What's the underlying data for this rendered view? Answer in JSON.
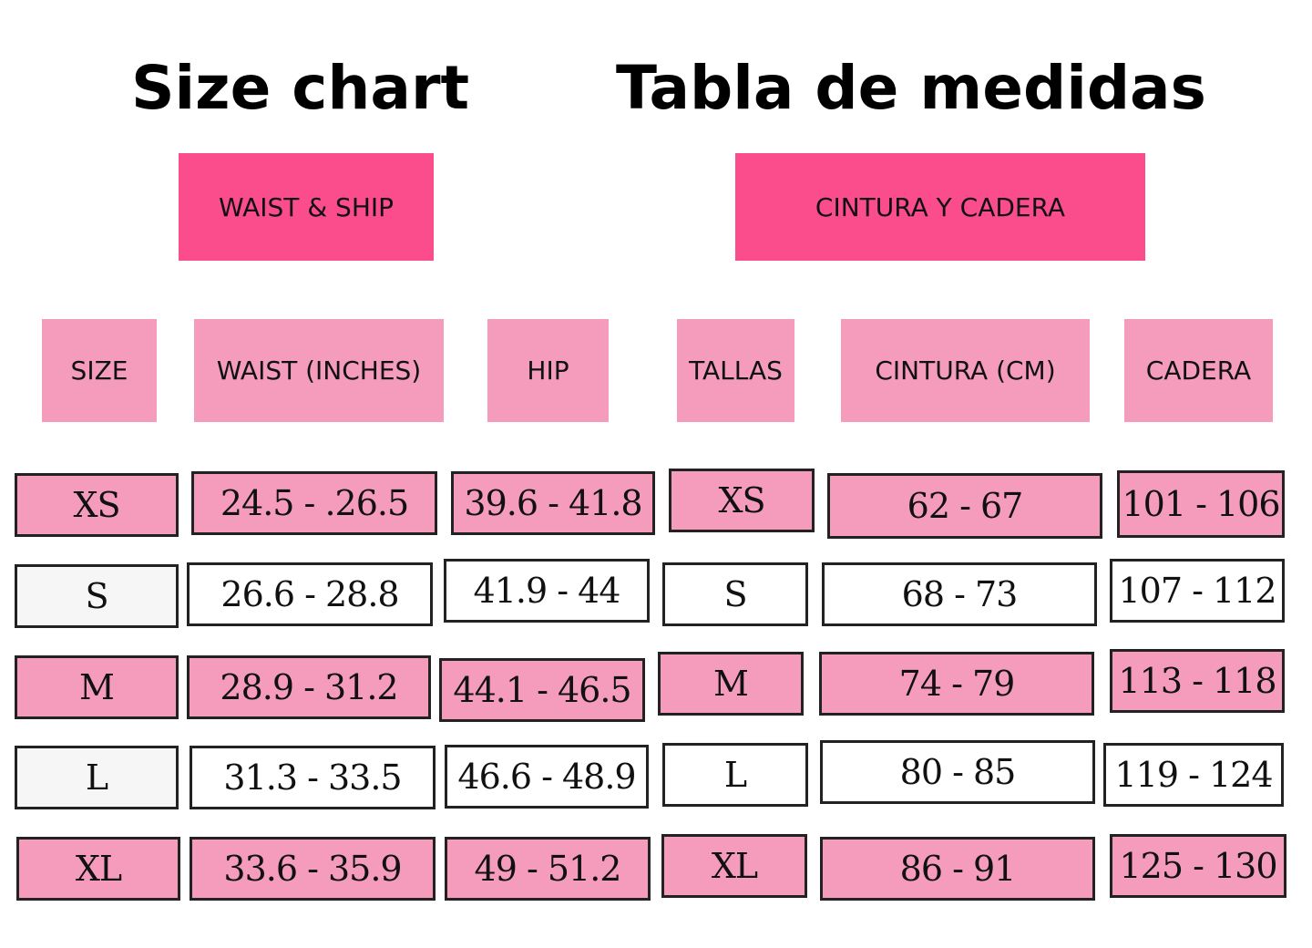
{
  "titles": {
    "left": "Size chart",
    "right": "Tabla de medidas"
  },
  "sections": {
    "left": "WAIST & SHIP",
    "right": "CINTURA Y CADERA"
  },
  "headers": {
    "left": [
      "SIZE",
      "WAIST (INCHES)",
      "HIP"
    ],
    "right": [
      "TALLAS",
      "CINTURA (CM)",
      "CADERA"
    ]
  },
  "rows": [
    {
      "size": "XS",
      "waist_in": "24.5 - .26.5",
      "hip_in": "39.6 - 41.8",
      "talla": "XS",
      "cintura_cm": "62 - 67",
      "cadera_cm": "101 - 106"
    },
    {
      "size": "S",
      "waist_in": "26.6 - 28.8",
      "hip_in": "41.9 - 44",
      "talla": "S",
      "cintura_cm": "68 - 73",
      "cadera_cm": "107 - 112"
    },
    {
      "size": "M",
      "waist_in": "28.9 - 31.2",
      "hip_in": "44.1 - 46.5",
      "talla": "M",
      "cintura_cm": "74 - 79",
      "cadera_cm": "113 - 118"
    },
    {
      "size": "L",
      "waist_in": "31.3 - 33.5",
      "hip_in": "46.6 - 48.9",
      "talla": "L",
      "cintura_cm": "80 - 85",
      "cadera_cm": "119 - 124"
    },
    {
      "size": "XL",
      "waist_in": "33.6 - 35.9",
      "hip_in": "49 - 51.2",
      "talla": "XL",
      "cintura_cm": "86 - 91",
      "cadera_cm": "125 - 130"
    }
  ],
  "colors": {
    "section": "#fb4c8c",
    "header": "#f59cbc",
    "row_pink": "#f59cbc",
    "row_white": "#ffffff",
    "row_grey": "#f6f6f6",
    "border": "#222222"
  }
}
